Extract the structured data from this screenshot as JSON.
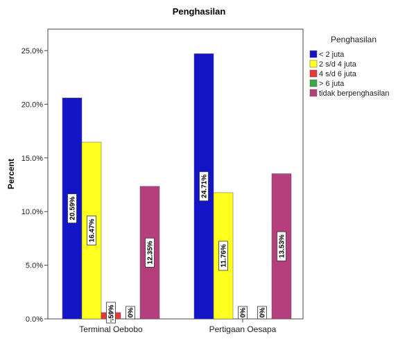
{
  "chart_data": {
    "type": "bar",
    "title": "Penghasilan",
    "xlabel": "",
    "ylabel": "Percent",
    "ylim": [
      0,
      27
    ],
    "yticks": [
      "0.0%",
      "5.0%",
      "10.0%",
      "15.0%",
      "20.0%",
      "25.0%"
    ],
    "categories": [
      "Terminal Oebobo",
      "Pertigaan Oesapa"
    ],
    "legend_title": "Penghasilan",
    "legend_position": "right",
    "series": [
      {
        "name": "< 2 juta",
        "color": "#1515c8",
        "values": [
          20.59,
          24.71
        ],
        "labels": [
          "20.59%",
          "24.71%"
        ]
      },
      {
        "name": "2  s/d 4 juta",
        "color": "#ffff1e",
        "values": [
          16.47,
          11.76
        ],
        "labels": [
          "16.47%",
          "11.76%"
        ]
      },
      {
        "name": "4  s/d 6 juta",
        "color": "#e8383b",
        "values": [
          0.59,
          0
        ],
        "labels": [
          ".59%",
          "0%"
        ]
      },
      {
        "name": "> 6 juta",
        "color": "#3aa845",
        "values": [
          0,
          0
        ],
        "labels": [
          "0%",
          "0%"
        ]
      },
      {
        "name": "tidak berpenghasilan",
        "color": "#b53e7c",
        "values": [
          12.35,
          13.53
        ],
        "labels": [
          "12.35%",
          "13.53%"
        ]
      }
    ]
  }
}
